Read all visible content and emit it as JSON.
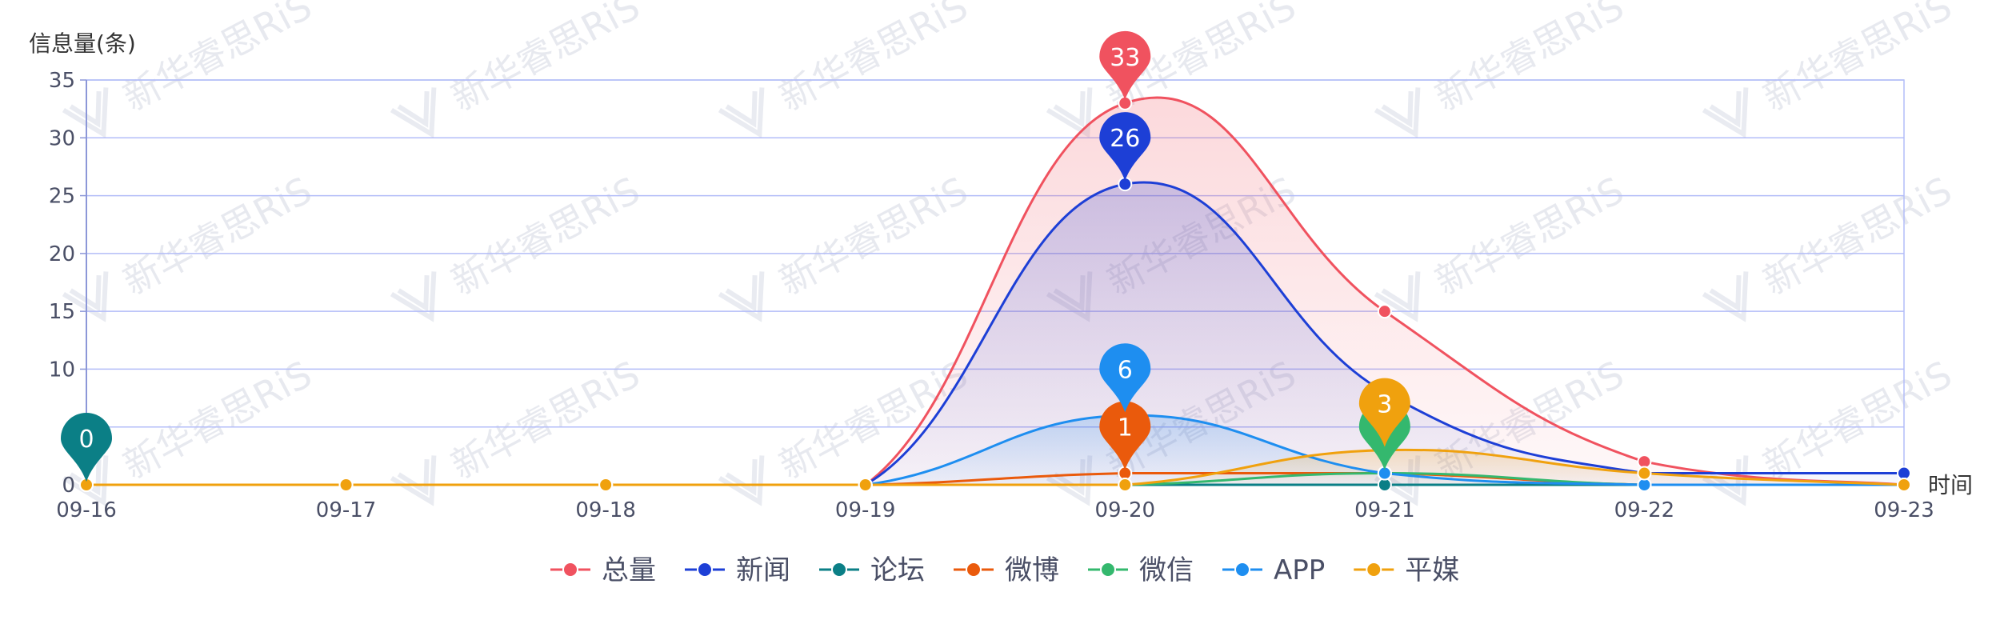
{
  "chart_data": {
    "type": "line",
    "ylabel": "信息量(条)",
    "xlabel": "时间",
    "ylim": [
      0,
      35
    ],
    "yticks": [
      0,
      5,
      10,
      15,
      20,
      25,
      30,
      35
    ],
    "ytick_labels": [
      "0",
      "",
      "10",
      "15",
      "20",
      "25",
      "30",
      "35"
    ],
    "categories": [
      "09-16",
      "09-17",
      "09-18",
      "09-19",
      "09-20",
      "09-21",
      "09-22",
      "09-23"
    ],
    "grid": true,
    "smooth": true,
    "legend_position": "bottom",
    "series": [
      {
        "name": "总量",
        "color": "#f0525f",
        "values": [
          0,
          0,
          0,
          0,
          33,
          15,
          2,
          0
        ],
        "fill": true,
        "pin": {
          "index": 4,
          "label": "33"
        }
      },
      {
        "name": "新闻",
        "color": "#1d3fd6",
        "values": [
          0,
          0,
          0,
          0,
          26,
          8,
          1,
          1
        ],
        "fill": true,
        "pin": {
          "index": 4,
          "label": "26"
        }
      },
      {
        "name": "论坛",
        "color": "#0b7f86",
        "values": [
          0,
          0,
          0,
          0,
          0,
          0,
          0,
          0
        ],
        "fill": false,
        "pin": {
          "index": 0,
          "label": "0"
        }
      },
      {
        "name": "微博",
        "color": "#ea5a0c",
        "values": [
          0,
          0,
          0,
          0,
          1,
          1,
          0,
          0
        ],
        "fill": false,
        "pin": {
          "index": 4,
          "label": "1"
        }
      },
      {
        "name": "微信",
        "color": "#34b86e",
        "values": [
          0,
          0,
          0,
          0,
          0,
          1,
          0,
          0
        ],
        "fill": false,
        "pin": {
          "index": 5,
          "label": ""
        }
      },
      {
        "name": "APP",
        "color": "#1e8ef0",
        "values": [
          0,
          0,
          0,
          0,
          6,
          1,
          0,
          0
        ],
        "fill": true,
        "pin": {
          "index": 4,
          "label": "6"
        }
      },
      {
        "name": "平媒",
        "color": "#f0a10e",
        "values": [
          0,
          0,
          0,
          0,
          0,
          3,
          1,
          0
        ],
        "fill": true,
        "pin": {
          "index": 5,
          "label": "3"
        }
      }
    ]
  },
  "watermark": {
    "text": "新华睿思RiS"
  }
}
